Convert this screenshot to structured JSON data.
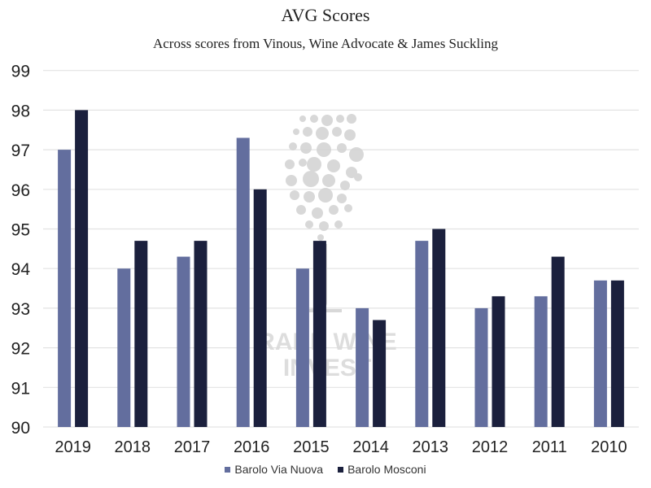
{
  "chart_data": {
    "type": "bar",
    "title": "AVG Scores",
    "subtitle": "Across scores from Vinous, Wine Advocate & James Suckling",
    "categories": [
      "2019",
      "2018",
      "2017",
      "2016",
      "2015",
      "2014",
      "2013",
      "2012",
      "2011",
      "2010"
    ],
    "series": [
      {
        "name": "Barolo Via Nuova",
        "color": "#636E9E",
        "values": [
          97.0,
          94.0,
          94.3,
          97.3,
          94.0,
          93.0,
          94.7,
          93.0,
          93.3,
          93.7
        ]
      },
      {
        "name": "Barolo Mosconi",
        "color": "#1B203D",
        "values": [
          98.0,
          94.7,
          94.7,
          96.0,
          94.7,
          92.7,
          95.0,
          93.3,
          94.3,
          93.7
        ]
      }
    ],
    "ylim": [
      90,
      99
    ],
    "yticks": [
      "90",
      "91",
      "92",
      "93",
      "94",
      "95",
      "96",
      "97",
      "98",
      "99"
    ],
    "grid": true,
    "legend_position": "bottom",
    "watermark": "RARE WINE INVEST"
  }
}
